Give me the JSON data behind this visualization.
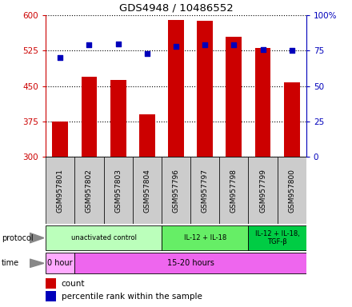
{
  "title": "GDS4948 / 10486552",
  "samples": [
    "GSM957801",
    "GSM957802",
    "GSM957803",
    "GSM957804",
    "GSM957796",
    "GSM957797",
    "GSM957798",
    "GSM957799",
    "GSM957800"
  ],
  "counts": [
    375,
    470,
    462,
    390,
    590,
    588,
    555,
    530,
    458
  ],
  "percentile_ranks": [
    70,
    79,
    80,
    73,
    78,
    79,
    79,
    76,
    75
  ],
  "ylim_left": [
    300,
    600
  ],
  "ylim_right": [
    0,
    100
  ],
  "yticks_left": [
    300,
    375,
    450,
    525,
    600
  ],
  "yticks_right": [
    0,
    25,
    50,
    75,
    100
  ],
  "protocol_groups": [
    {
      "label": "unactivated control",
      "start": 0,
      "end": 4,
      "color": "#bbffbb"
    },
    {
      "label": "IL-12 + IL-18",
      "start": 4,
      "end": 7,
      "color": "#66ee66"
    },
    {
      "label": "IL-12 + IL-18,\nTGF-β",
      "start": 7,
      "end": 9,
      "color": "#00cc44"
    }
  ],
  "time_groups": [
    {
      "label": "0 hour",
      "start": 0,
      "end": 1,
      "color": "#ffaaff"
    },
    {
      "label": "15-20 hours",
      "start": 1,
      "end": 9,
      "color": "#ee66ee"
    }
  ],
  "bar_color": "#cc0000",
  "dot_color": "#0000bb",
  "left_axis_color": "#cc0000",
  "right_axis_color": "#0000bb",
  "sample_box_color": "#cccccc"
}
